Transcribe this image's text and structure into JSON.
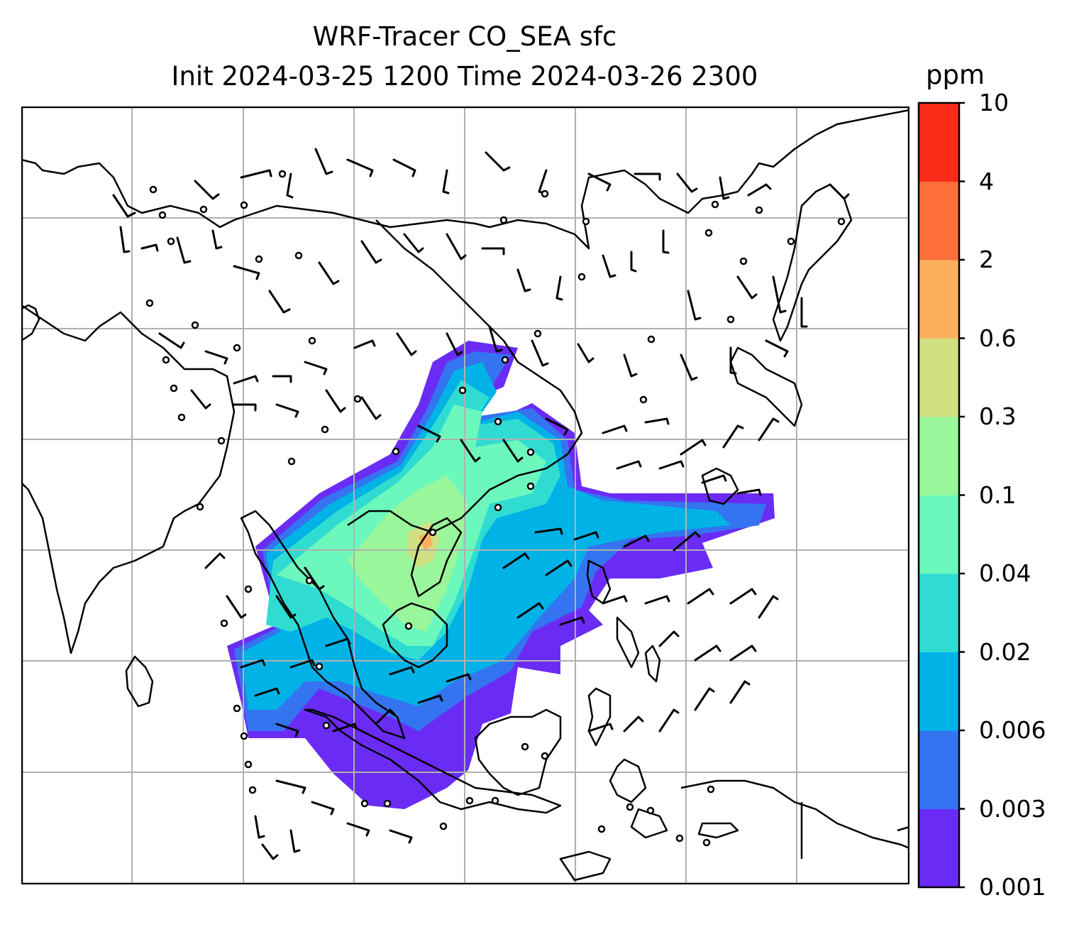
{
  "title": {
    "line1": "WRF-Tracer CO_SEA sfc",
    "line2": "Init 2024-03-25 1200 Time 2024-03-26 2300"
  },
  "colorbar": {
    "unit": "ppm",
    "levels": [
      "0.001",
      "0.003",
      "0.006",
      "0.02",
      "0.04",
      "0.1",
      "0.3",
      "0.6",
      "2",
      "4",
      "10"
    ],
    "colors": [
      "#6a2cf5",
      "#3474f0",
      "#00b2e6",
      "#30dcd2",
      "#6cf8bd",
      "#9af69a",
      "#d0e083",
      "#fcb05e",
      "#fc6f3a",
      "#f82c18"
    ]
  },
  "map": {
    "coastline_color": "#000000",
    "grid_color": "#b0b0b0"
  }
}
